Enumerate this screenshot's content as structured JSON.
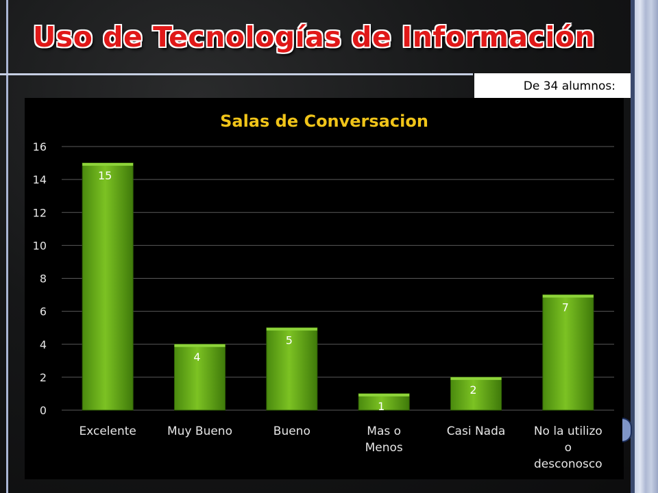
{
  "slide": {
    "title": "Uso de Tecnologías de Información",
    "subtitle": "De 34 alumnos:"
  },
  "colors": {
    "title_red": "#e01818",
    "chart_title_yellow": "#f0c419",
    "bar_green": "#5fa316",
    "axis_text": "#e6e6e6"
  },
  "chart_data": {
    "type": "bar",
    "title": "Salas de Conversacion",
    "categories": [
      "Excelente",
      "Muy Bueno",
      "Bueno",
      "Mas o Menos",
      "Casi Nada",
      "No la utilizo o desconosco"
    ],
    "category_lines": [
      [
        "Excelente"
      ],
      [
        "Muy Bueno"
      ],
      [
        "Bueno"
      ],
      [
        "Mas o",
        "Menos"
      ],
      [
        "Casi Nada"
      ],
      [
        "No la utilizo",
        "o",
        "desconosco"
      ]
    ],
    "values": [
      15,
      4,
      5,
      1,
      2,
      7
    ],
    "ylim": [
      0,
      16
    ],
    "yticks": [
      0,
      2,
      4,
      6,
      8,
      10,
      12,
      14,
      16
    ],
    "data_labels": true,
    "grid": true,
    "legend": "none"
  }
}
